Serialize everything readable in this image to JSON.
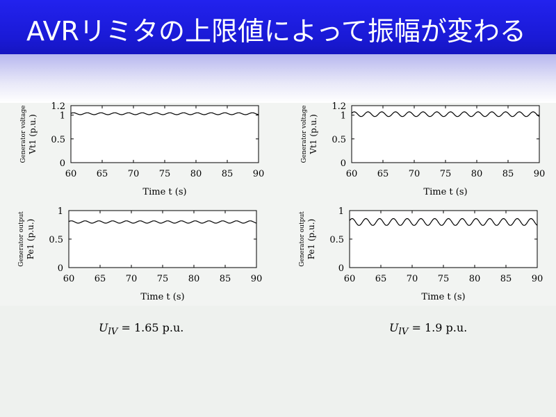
{
  "slide": {
    "title": "AVRリミタの上限値によって振幅が変わる"
  },
  "captions": [
    {
      "var": "U",
      "sub": "lV",
      "rest": " = 1.65 p.u."
    },
    {
      "var": "U",
      "sub": "lV",
      "rest": " = 1.9 p.u."
    }
  ],
  "chart_data": [
    {
      "type": "line",
      "ylabel_line1": "Generator voltage",
      "ylabel_line2": "Vt1 (p.u.)",
      "xlabel": "Time  t (s)",
      "xlim": [
        60,
        90
      ],
      "ylim": [
        0,
        1.2
      ],
      "xticks": [
        60,
        65,
        70,
        75,
        80,
        85,
        90
      ],
      "yticks": [
        0,
        0.5,
        1,
        1.2
      ],
      "ytick_labels": [
        "0",
        "0.5",
        "1",
        "1.2"
      ],
      "series": [
        {
          "mean": 1.03,
          "amplitude": 0.02,
          "period_s": 2.2
        }
      ]
    },
    {
      "type": "line",
      "ylabel_line1": "Generator voltage",
      "ylabel_line2": "Vt1 (p.u.)",
      "xlabel": "Time  t (s)",
      "xlim": [
        60,
        90
      ],
      "ylim": [
        0,
        1.2
      ],
      "xticks": [
        60,
        65,
        70,
        75,
        80,
        85,
        90
      ],
      "yticks": [
        0,
        0.5,
        1,
        1.2
      ],
      "ytick_labels": [
        "0",
        "0.5",
        "1",
        "1.2"
      ],
      "series": [
        {
          "mean": 1.02,
          "amplitude": 0.05,
          "period_s": 2.2
        }
      ]
    },
    {
      "type": "line",
      "ylabel_line1": "Generator output",
      "ylabel_line2": "Pe1 (p.u.)",
      "xlabel": "Time  t (s)",
      "xlim": [
        60,
        90
      ],
      "ylim": [
        0,
        1
      ],
      "xticks": [
        60,
        65,
        70,
        75,
        80,
        85,
        90
      ],
      "yticks": [
        0,
        0.5,
        1
      ],
      "ytick_labels": [
        "0",
        "0.5",
        "1"
      ],
      "series": [
        {
          "mean": 0.8,
          "amplitude": 0.02,
          "period_s": 2.2
        }
      ]
    },
    {
      "type": "line",
      "ylabel_line1": "Generator output",
      "ylabel_line2": "Pe1 (p.u.)",
      "xlabel": "Time  t (s)",
      "xlim": [
        60,
        90
      ],
      "ylim": [
        0,
        1
      ],
      "xticks": [
        60,
        65,
        70,
        75,
        80,
        85,
        90
      ],
      "yticks": [
        0,
        0.5,
        1
      ],
      "ytick_labels": [
        "0",
        "0.5",
        "1"
      ],
      "series": [
        {
          "mean": 0.8,
          "amplitude": 0.06,
          "period_s": 2.2
        }
      ]
    }
  ]
}
